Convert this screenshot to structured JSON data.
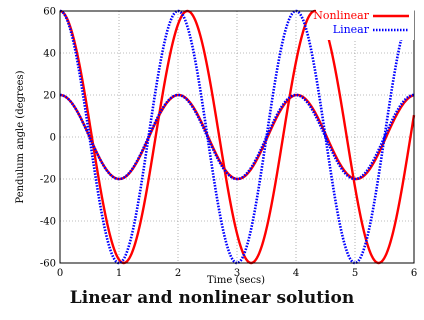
{
  "caption": "Linear and nonlinear solution",
  "colors": {
    "nonlinear": "#ff0000",
    "linear": "#0000ff",
    "grid": "#7f7f7f",
    "frame": "#000000"
  },
  "chart_data": {
    "type": "line",
    "xlabel": "Time  (secs)",
    "ylabel": "Pendulum angle  (degrees)",
    "xlim": [
      0,
      6
    ],
    "ylim": [
      -60,
      60
    ],
    "xticks": [
      0,
      1,
      2,
      3,
      4,
      5,
      6
    ],
    "yticks": [
      -60,
      -40,
      -20,
      0,
      20,
      40,
      60
    ],
    "grid": true,
    "legend_position": "top-right",
    "series": [
      {
        "name": "Nonlinear",
        "color": "#ff0000",
        "style": "solid",
        "curves": [
          {
            "amplitude": 60,
            "period": 2.16
          },
          {
            "amplitude": 20,
            "period": 2.01
          }
        ]
      },
      {
        "name": "Linear",
        "color": "#0000ff",
        "style": "dotted",
        "curves": [
          {
            "amplitude": 60,
            "period": 2.0
          },
          {
            "amplitude": 20,
            "period": 2.0
          }
        ]
      }
    ]
  }
}
